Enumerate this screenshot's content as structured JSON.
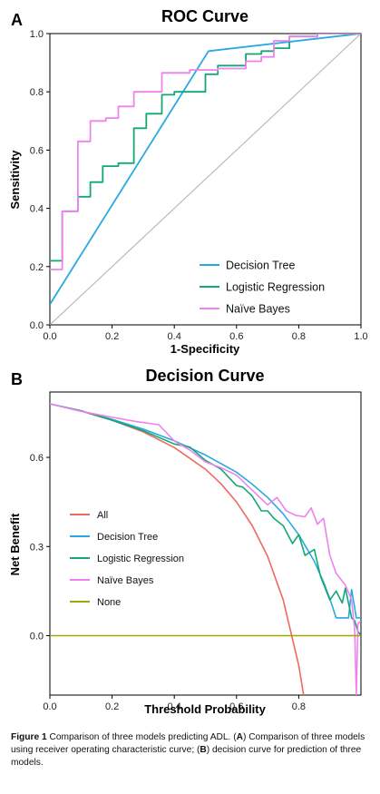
{
  "colors": {
    "decision_tree": "#27AAE1",
    "logistic_regression": "#12A872",
    "naive_bayes": "#EE82EE",
    "all": "#EE6A5E",
    "none": "#A6A400",
    "reference": "#BBBBBB"
  },
  "caption": {
    "label": "Figure 1",
    "intro": "Comparison of three models predicting ADL. (",
    "ref_a": "A",
    "text_a": ") Comparison of three models using receiver operating characteristic curve; (",
    "ref_b": "B",
    "text_b": ") decision curve for prediction of three models."
  },
  "chart_data": [
    {
      "panel": "A",
      "type": "line",
      "title": "ROC Curve",
      "xlabel": "1-Specificity",
      "ylabel": "Sensitivity",
      "xlim": [
        0,
        1
      ],
      "ylim": [
        0,
        1
      ],
      "xticks": [
        "0.0",
        "0.2",
        "0.4",
        "0.6",
        "0.8",
        "1.0"
      ],
      "yticks": [
        "0.0",
        "0.2",
        "0.4",
        "0.6",
        "0.8",
        "1.0"
      ],
      "legend_position": "bottom-right",
      "reference_line": [
        [
          0,
          0
        ],
        [
          1,
          1
        ]
      ],
      "series": [
        {
          "name": "Decision Tree",
          "color_key": "decision_tree",
          "points": [
            [
              0,
              0.07
            ],
            [
              0.51,
              0.94
            ],
            [
              1,
              1
            ]
          ]
        },
        {
          "name": "Logistic Regression",
          "color_key": "logistic_regression",
          "points": [
            [
              0,
              0.22
            ],
            [
              0.04,
              0.22
            ],
            [
              0.04,
              0.39
            ],
            [
              0.09,
              0.39
            ],
            [
              0.09,
              0.44
            ],
            [
              0.13,
              0.44
            ],
            [
              0.13,
              0.49
            ],
            [
              0.17,
              0.49
            ],
            [
              0.17,
              0.545
            ],
            [
              0.22,
              0.545
            ],
            [
              0.22,
              0.555
            ],
            [
              0.27,
              0.555
            ],
            [
              0.27,
              0.675
            ],
            [
              0.31,
              0.675
            ],
            [
              0.31,
              0.725
            ],
            [
              0.36,
              0.725
            ],
            [
              0.36,
              0.79
            ],
            [
              0.4,
              0.79
            ],
            [
              0.4,
              0.8
            ],
            [
              0.5,
              0.8
            ],
            [
              0.5,
              0.86
            ],
            [
              0.54,
              0.86
            ],
            [
              0.54,
              0.89
            ],
            [
              0.63,
              0.89
            ],
            [
              0.63,
              0.93
            ],
            [
              0.68,
              0.93
            ],
            [
              0.68,
              0.94
            ],
            [
              0.72,
              0.94
            ],
            [
              0.72,
              0.95
            ],
            [
              0.77,
              0.95
            ],
            [
              0.77,
              0.99
            ],
            [
              0.86,
              0.99
            ],
            [
              0.86,
              1.0
            ],
            [
              1,
              1
            ]
          ]
        },
        {
          "name": "Naïve Bayes",
          "color_key": "naive_bayes",
          "points": [
            [
              0,
              0.19
            ],
            [
              0.04,
              0.19
            ],
            [
              0.04,
              0.39
            ],
            [
              0.09,
              0.39
            ],
            [
              0.09,
              0.63
            ],
            [
              0.13,
              0.63
            ],
            [
              0.13,
              0.7
            ],
            [
              0.18,
              0.7
            ],
            [
              0.18,
              0.71
            ],
            [
              0.22,
              0.71
            ],
            [
              0.22,
              0.75
            ],
            [
              0.27,
              0.75
            ],
            [
              0.27,
              0.8
            ],
            [
              0.36,
              0.8
            ],
            [
              0.36,
              0.865
            ],
            [
              0.45,
              0.865
            ],
            [
              0.45,
              0.875
            ],
            [
              0.54,
              0.875
            ],
            [
              0.54,
              0.88
            ],
            [
              0.63,
              0.88
            ],
            [
              0.63,
              0.905
            ],
            [
              0.68,
              0.905
            ],
            [
              0.68,
              0.92
            ],
            [
              0.72,
              0.92
            ],
            [
              0.72,
              0.975
            ],
            [
              0.77,
              0.975
            ],
            [
              0.77,
              0.99
            ],
            [
              0.86,
              0.99
            ],
            [
              0.86,
              1.0
            ],
            [
              1,
              1
            ]
          ]
        }
      ]
    },
    {
      "panel": "B",
      "type": "line",
      "title": "Decision Curve",
      "xlabel": "Threshold Probability",
      "ylabel": "Net Benefit",
      "xlim": [
        0,
        1
      ],
      "ylim": [
        -0.2,
        0.82
      ],
      "xticks": [
        "0.0",
        "0.2",
        "0.4",
        "0.6",
        "0.8"
      ],
      "yticks": [
        "0.0",
        "0.3",
        "0.6"
      ],
      "legend_position": "bottom-left",
      "series": [
        {
          "name": "All",
          "color_key": "all",
          "points": [
            [
              0,
              0.78
            ],
            [
              0.1,
              0.756
            ],
            [
              0.2,
              0.725
            ],
            [
              0.3,
              0.686
            ],
            [
              0.4,
              0.633
            ],
            [
              0.5,
              0.56
            ],
            [
              0.55,
              0.511
            ],
            [
              0.6,
              0.45
            ],
            [
              0.65,
              0.371
            ],
            [
              0.7,
              0.267
            ],
            [
              0.75,
              0.12
            ],
            [
              0.8,
              -0.1
            ],
            [
              0.83,
              -0.29
            ],
            [
              0.86,
              -0.53
            ]
          ]
        },
        {
          "name": "Decision Tree",
          "color_key": "decision_tree",
          "points": [
            [
              0,
              0.78
            ],
            [
              0.1,
              0.757
            ],
            [
              0.2,
              0.728
            ],
            [
              0.3,
              0.695
            ],
            [
              0.4,
              0.656
            ],
            [
              0.5,
              0.608
            ],
            [
              0.6,
              0.55
            ],
            [
              0.65,
              0.51
            ],
            [
              0.7,
              0.465
            ],
            [
              0.75,
              0.41
            ],
            [
              0.8,
              0.34
            ],
            [
              0.85,
              0.25
            ],
            [
              0.88,
              0.18
            ],
            [
              0.9,
              0.125
            ],
            [
              0.92,
              0.06
            ],
            [
              0.96,
              0.06
            ],
            [
              0.97,
              0.155
            ],
            [
              0.985,
              0.06
            ],
            [
              1,
              0.06
            ]
          ]
        },
        {
          "name": "Logistic Regression",
          "color_key": "logistic_regression",
          "points": [
            [
              0,
              0.78
            ],
            [
              0.1,
              0.757
            ],
            [
              0.2,
              0.725
            ],
            [
              0.3,
              0.69
            ],
            [
              0.4,
              0.645
            ],
            [
              0.45,
              0.635
            ],
            [
              0.5,
              0.59
            ],
            [
              0.55,
              0.56
            ],
            [
              0.6,
              0.505
            ],
            [
              0.62,
              0.5
            ],
            [
              0.65,
              0.47
            ],
            [
              0.68,
              0.42
            ],
            [
              0.7,
              0.42
            ],
            [
              0.72,
              0.395
            ],
            [
              0.75,
              0.37
            ],
            [
              0.78,
              0.31
            ],
            [
              0.8,
              0.34
            ],
            [
              0.82,
              0.27
            ],
            [
              0.85,
              0.29
            ],
            [
              0.87,
              0.2
            ],
            [
              0.9,
              0.12
            ],
            [
              0.92,
              0.15
            ],
            [
              0.94,
              0.11
            ],
            [
              0.95,
              0.16
            ],
            [
              0.97,
              0.06
            ],
            [
              0.98,
              0.05
            ],
            [
              0.99,
              0.015
            ],
            [
              1,
              0.0
            ]
          ]
        },
        {
          "name": "Naïve Bayes",
          "color_key": "naive_bayes",
          "points": [
            [
              0,
              0.78
            ],
            [
              0.1,
              0.755
            ],
            [
              0.2,
              0.735
            ],
            [
              0.28,
              0.72
            ],
            [
              0.35,
              0.71
            ],
            [
              0.4,
              0.655
            ],
            [
              0.45,
              0.625
            ],
            [
              0.5,
              0.585
            ],
            [
              0.55,
              0.565
            ],
            [
              0.6,
              0.54
            ],
            [
              0.65,
              0.49
            ],
            [
              0.7,
              0.44
            ],
            [
              0.73,
              0.465
            ],
            [
              0.76,
              0.42
            ],
            [
              0.79,
              0.405
            ],
            [
              0.82,
              0.4
            ],
            [
              0.84,
              0.43
            ],
            [
              0.86,
              0.375
            ],
            [
              0.88,
              0.395
            ],
            [
              0.9,
              0.27
            ],
            [
              0.92,
              0.21
            ],
            [
              0.95,
              0.17
            ],
            [
              0.97,
              0.12
            ],
            [
              0.98,
              0.02
            ],
            [
              0.985,
              -0.2
            ],
            [
              0.99,
              0.04
            ],
            [
              1,
              0.05
            ]
          ]
        },
        {
          "name": "None",
          "color_key": "none",
          "points": [
            [
              0,
              0
            ],
            [
              1,
              0
            ]
          ]
        }
      ]
    }
  ]
}
